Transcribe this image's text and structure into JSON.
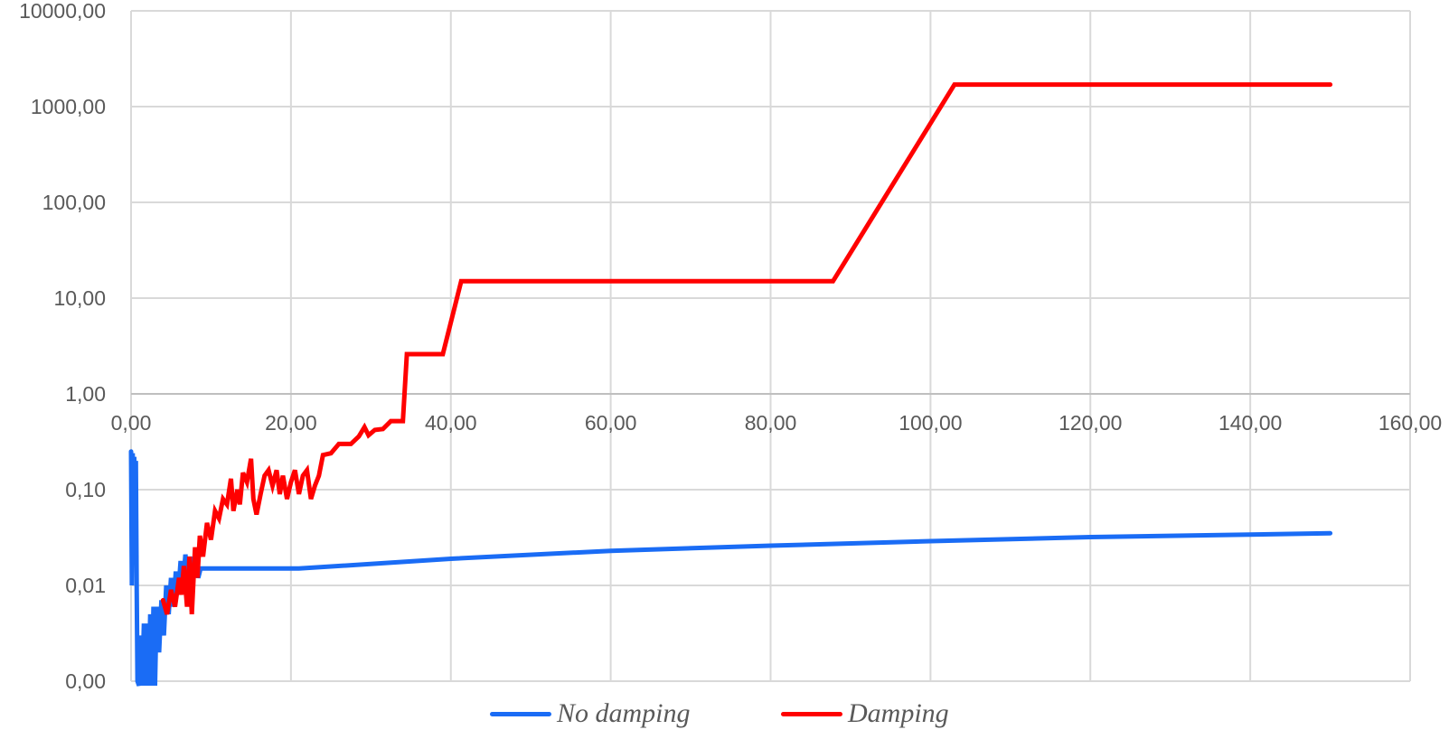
{
  "chart_data": {
    "type": "line",
    "title": "",
    "xlabel": "",
    "ylabel": "",
    "xlim": [
      0,
      160
    ],
    "yscale": "log",
    "ylim": [
      0.001,
      10000
    ],
    "grid": true,
    "legend_position": "bottom",
    "x_ticks": [
      "0,00",
      "20,00",
      "40,00",
      "60,00",
      "80,00",
      "100,00",
      "120,00",
      "140,00",
      "160,00"
    ],
    "y_ticks": [
      {
        "value": 10000,
        "label": "10000,00"
      },
      {
        "value": 1000,
        "label": "1000,00"
      },
      {
        "value": 100,
        "label": "100,00"
      },
      {
        "value": 10,
        "label": "10,00"
      },
      {
        "value": 1,
        "label": "1,00"
      },
      {
        "value": 0.1,
        "label": "0,10"
      },
      {
        "value": 0.01,
        "label": "0,01"
      },
      {
        "value": 0.001,
        "label": "0,00"
      }
    ],
    "series": [
      {
        "name": "No damping",
        "color": "#1a6cf5",
        "points": [
          [
            0.0,
            0.25
          ],
          [
            0.1,
            0.01
          ],
          [
            0.2,
            0.24
          ],
          [
            0.3,
            0.02
          ],
          [
            0.4,
            0.22
          ],
          [
            0.5,
            0.03
          ],
          [
            0.6,
            0.2
          ],
          [
            0.7,
            0.01
          ],
          [
            0.8,
            0.001
          ],
          [
            1.0,
            0.0009
          ],
          [
            1.2,
            0.003
          ],
          [
            1.4,
            0.0009
          ],
          [
            1.6,
            0.004
          ],
          [
            1.8,
            0.0009
          ],
          [
            2.0,
            0.004
          ],
          [
            2.2,
            0.0009
          ],
          [
            2.4,
            0.005
          ],
          [
            2.6,
            0.0009
          ],
          [
            2.8,
            0.006
          ],
          [
            3.0,
            0.0009
          ],
          [
            3.2,
            0.006
          ],
          [
            3.5,
            0.002
          ],
          [
            3.8,
            0.007
          ],
          [
            4.1,
            0.003
          ],
          [
            4.4,
            0.01
          ],
          [
            4.7,
            0.005
          ],
          [
            5.0,
            0.012
          ],
          [
            5.3,
            0.006
          ],
          [
            5.6,
            0.014
          ],
          [
            5.9,
            0.008
          ],
          [
            6.2,
            0.018
          ],
          [
            6.5,
            0.01
          ],
          [
            6.8,
            0.021
          ],
          [
            7.1,
            0.012
          ],
          [
            7.4,
            0.02
          ],
          [
            7.7,
            0.01
          ],
          [
            8.0,
            0.02
          ],
          [
            8.4,
            0.012
          ],
          [
            8.7,
            0.015
          ],
          [
            12.0,
            0.015
          ],
          [
            21.0,
            0.015
          ],
          [
            40.0,
            0.019
          ],
          [
            60.0,
            0.023
          ],
          [
            80.0,
            0.026
          ],
          [
            100.0,
            0.029
          ],
          [
            120.0,
            0.032
          ],
          [
            150.0,
            0.035
          ]
        ]
      },
      {
        "name": "Damping",
        "color": "#ff0000",
        "points": [
          [
            4.0,
            0.007
          ],
          [
            4.5,
            0.005
          ],
          [
            5.0,
            0.009
          ],
          [
            5.5,
            0.006
          ],
          [
            6.0,
            0.012
          ],
          [
            6.3,
            0.008
          ],
          [
            6.6,
            0.016
          ],
          [
            7.0,
            0.006
          ],
          [
            7.3,
            0.02
          ],
          [
            7.6,
            0.005
          ],
          [
            8.0,
            0.025
          ],
          [
            8.3,
            0.012
          ],
          [
            8.6,
            0.033
          ],
          [
            9.0,
            0.02
          ],
          [
            9.5,
            0.045
          ],
          [
            10.0,
            0.03
          ],
          [
            10.5,
            0.06
          ],
          [
            11.0,
            0.05
          ],
          [
            11.5,
            0.08
          ],
          [
            12.0,
            0.07
          ],
          [
            12.5,
            0.13
          ],
          [
            12.8,
            0.06
          ],
          [
            13.3,
            0.1
          ],
          [
            13.6,
            0.07
          ],
          [
            14.0,
            0.15
          ],
          [
            14.5,
            0.12
          ],
          [
            15.0,
            0.21
          ],
          [
            15.3,
            0.08
          ],
          [
            15.7,
            0.055
          ],
          [
            16.2,
            0.09
          ],
          [
            16.7,
            0.14
          ],
          [
            17.2,
            0.16
          ],
          [
            17.7,
            0.11
          ],
          [
            18.2,
            0.16
          ],
          [
            18.6,
            0.09
          ],
          [
            19.0,
            0.14
          ],
          [
            19.5,
            0.08
          ],
          [
            20.0,
            0.12
          ],
          [
            20.5,
            0.16
          ],
          [
            21.0,
            0.09
          ],
          [
            21.5,
            0.14
          ],
          [
            22.0,
            0.16
          ],
          [
            22.5,
            0.08
          ],
          [
            23.0,
            0.11
          ],
          [
            23.5,
            0.14
          ],
          [
            24.0,
            0.23
          ],
          [
            25.0,
            0.24
          ],
          [
            26.0,
            0.3
          ],
          [
            27.5,
            0.3
          ],
          [
            28.5,
            0.36
          ],
          [
            29.2,
            0.45
          ],
          [
            29.7,
            0.37
          ],
          [
            30.5,
            0.42
          ],
          [
            31.5,
            0.43
          ],
          [
            32.5,
            0.52
          ],
          [
            34.0,
            0.52
          ],
          [
            34.5,
            2.6
          ],
          [
            36.0,
            2.6
          ],
          [
            39.0,
            2.6
          ],
          [
            41.3,
            15.0
          ],
          [
            50.0,
            15.0
          ],
          [
            70.0,
            15.0
          ],
          [
            87.8,
            15.0
          ],
          [
            103.0,
            1700
          ],
          [
            120.0,
            1700
          ],
          [
            150.0,
            1700
          ]
        ]
      }
    ]
  }
}
